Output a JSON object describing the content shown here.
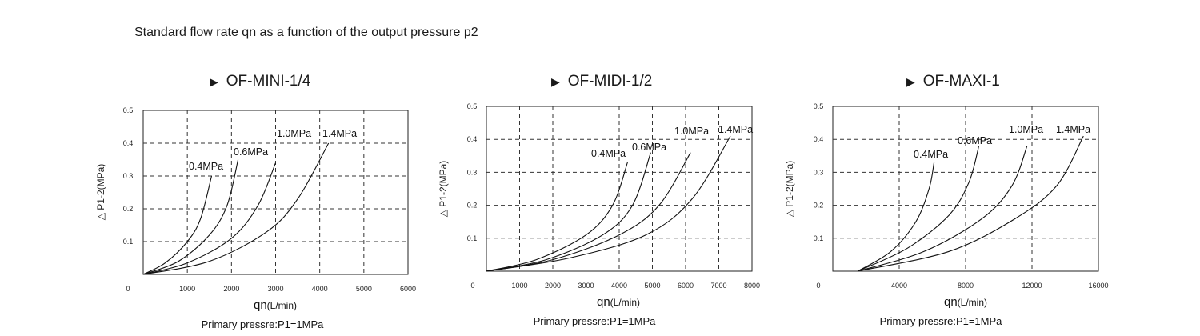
{
  "heading": "Standard flow rate qn as a function of the output pressure p2",
  "chart_data": [
    {
      "type": "line",
      "title": "OF-MINI-1/4",
      "ylabel": "△ P1-2(MPa)",
      "xlabel_main": "qn",
      "xlabel_unit": "(L/min)",
      "note": "Primary pressre:P1=1MPa",
      "xlim": [
        0,
        6000
      ],
      "ylim": [
        0,
        0.5
      ],
      "xticks": [
        "1000",
        "2000",
        "3000",
        "4000",
        "5000",
        "6000"
      ],
      "xtick_values": [
        1000,
        2000,
        3000,
        4000,
        5000,
        6000
      ],
      "yticks": [
        "0.1",
        "0.2",
        "0.3",
        "0.4",
        "0.5"
      ],
      "ytick_values": [
        0.1,
        0.2,
        0.3,
        0.4,
        0.5
      ],
      "origin_label": "0",
      "grid": true,
      "series": [
        {
          "name": "0.4MPa",
          "x": [
            0,
            500,
            1000,
            1300,
            1550
          ],
          "y": [
            0,
            0.035,
            0.1,
            0.17,
            0.3
          ]
        },
        {
          "name": "0.6MPa",
          "x": [
            0,
            800,
            1500,
            1900,
            2150
          ],
          "y": [
            0,
            0.04,
            0.12,
            0.21,
            0.35
          ]
        },
        {
          "name": "1.0MPa",
          "x": [
            0,
            1000,
            2000,
            2600,
            3000
          ],
          "y": [
            0,
            0.035,
            0.11,
            0.21,
            0.34
          ]
        },
        {
          "name": "1.4MPa",
          "x": [
            0,
            1500,
            2800,
            3500,
            4200
          ],
          "y": [
            0,
            0.04,
            0.13,
            0.23,
            0.4
          ]
        }
      ]
    },
    {
      "type": "line",
      "title": "OF-MIDI-1/2",
      "ylabel": "△ P1-2(MPa)",
      "xlabel_main": "qn",
      "xlabel_unit": "(L/min)",
      "note": "Primary pressre:P1=1MPa",
      "xlim": [
        0,
        8000
      ],
      "ylim": [
        0,
        0.5
      ],
      "xticks": [
        "1000",
        "2000",
        "3000",
        "4000",
        "5000",
        "6000",
        "7000",
        "8000"
      ],
      "xtick_values": [
        1000,
        2000,
        3000,
        4000,
        5000,
        6000,
        7000,
        8000
      ],
      "yticks": [
        "0.1",
        "0.2",
        "0.3",
        "0.4",
        "0.5"
      ],
      "ytick_values": [
        0.1,
        0.2,
        0.3,
        0.4,
        0.5
      ],
      "origin_label": "0",
      "grid": true,
      "series": [
        {
          "name": "0.4MPa",
          "x": [
            0,
            1500,
            3000,
            3800,
            4250
          ],
          "y": [
            0,
            0.035,
            0.11,
            0.2,
            0.33
          ]
        },
        {
          "name": "0.6MPa",
          "x": [
            0,
            1800,
            3500,
            4400,
            4950
          ],
          "y": [
            0,
            0.035,
            0.11,
            0.2,
            0.36
          ]
        },
        {
          "name": "1.0MPa",
          "x": [
            0,
            2000,
            4000,
            5200,
            6150
          ],
          "y": [
            0,
            0.035,
            0.11,
            0.2,
            0.36
          ]
        },
        {
          "name": "1.4MPa",
          "x": [
            0,
            2500,
            4800,
            6200,
            7350
          ],
          "y": [
            0,
            0.04,
            0.11,
            0.22,
            0.41
          ]
        }
      ]
    },
    {
      "type": "line",
      "title": "OF-MAXI-1",
      "ylabel": "△ P1-2(MPa)",
      "xlabel_main": "qn",
      "xlabel_unit": "(L/min)",
      "note": "Primary pressre:P1=1MPa",
      "xlim": [
        0,
        16000
      ],
      "ylim": [
        0,
        0.5
      ],
      "xticks": [
        "4000",
        "8000",
        "12000",
        "16000"
      ],
      "xtick_values": [
        4000,
        8000,
        12000,
        16000
      ],
      "yticks": [
        "0.1",
        "0.2",
        "0.3",
        "0.4",
        "0.5"
      ],
      "ytick_values": [
        0.1,
        0.2,
        0.3,
        0.4,
        0.5
      ],
      "origin_label": "0",
      "grid": true,
      "series": [
        {
          "name": "0.4MPa",
          "x": [
            1500,
            3500,
            5000,
            5800,
            6100
          ],
          "y": [
            0,
            0.06,
            0.15,
            0.25,
            0.33
          ]
        },
        {
          "name": "0.6MPa",
          "x": [
            1500,
            4500,
            7000,
            8200,
            8800
          ],
          "y": [
            0,
            0.07,
            0.17,
            0.27,
            0.38
          ]
        },
        {
          "name": "1.0MPa",
          "x": [
            1500,
            5500,
            9000,
            10800,
            11700
          ],
          "y": [
            0,
            0.06,
            0.16,
            0.26,
            0.38
          ]
        },
        {
          "name": "1.4MPa",
          "x": [
            1500,
            7000,
            11000,
            13500,
            15100
          ],
          "y": [
            0,
            0.06,
            0.16,
            0.26,
            0.41
          ]
        }
      ]
    }
  ]
}
